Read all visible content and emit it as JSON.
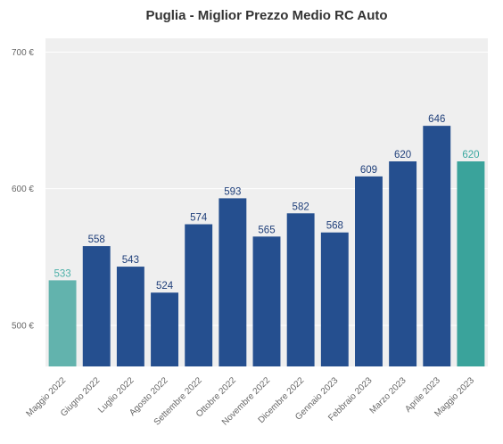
{
  "chart_data": {
    "type": "bar",
    "title": "Puglia - Miglior Prezzo Medio RC Auto",
    "xlabel": "",
    "ylabel": "",
    "ylim": [
      470,
      710
    ],
    "yticks": [
      500,
      600,
      700
    ],
    "ytick_labels": [
      "500 €",
      "600 €",
      "700 €"
    ],
    "grid": true,
    "legend": "none",
    "categories": [
      "Maggio 2022",
      "Giugno 2022",
      "Luglio 2022",
      "Agosto 2022",
      "Settembre 2022",
      "Ottobre 2022",
      "Novembre 2022",
      "Dicembre 2022",
      "Gennaio 2023",
      "Febbraio 2023",
      "Marzo 2023",
      "Aprile 2023",
      "Maggio 2023"
    ],
    "values": [
      533,
      558,
      543,
      524,
      574,
      593,
      565,
      582,
      568,
      609,
      620,
      646,
      620
    ],
    "bar_colors": [
      "#62b3ad",
      "#254f8f",
      "#254f8f",
      "#254f8f",
      "#254f8f",
      "#254f8f",
      "#254f8f",
      "#254f8f",
      "#254f8f",
      "#254f8f",
      "#254f8f",
      "#254f8f",
      "#3aa39b"
    ],
    "label_colors": [
      "#4cb0a8",
      "#1f3f7a",
      "#1f3f7a",
      "#1f3f7a",
      "#1f3f7a",
      "#1f3f7a",
      "#1f3f7a",
      "#1f3f7a",
      "#1f3f7a",
      "#1f3f7a",
      "#1f3f7a",
      "#1f3f7a",
      "#3aa8a0"
    ],
    "plot_background": "#efefef"
  }
}
